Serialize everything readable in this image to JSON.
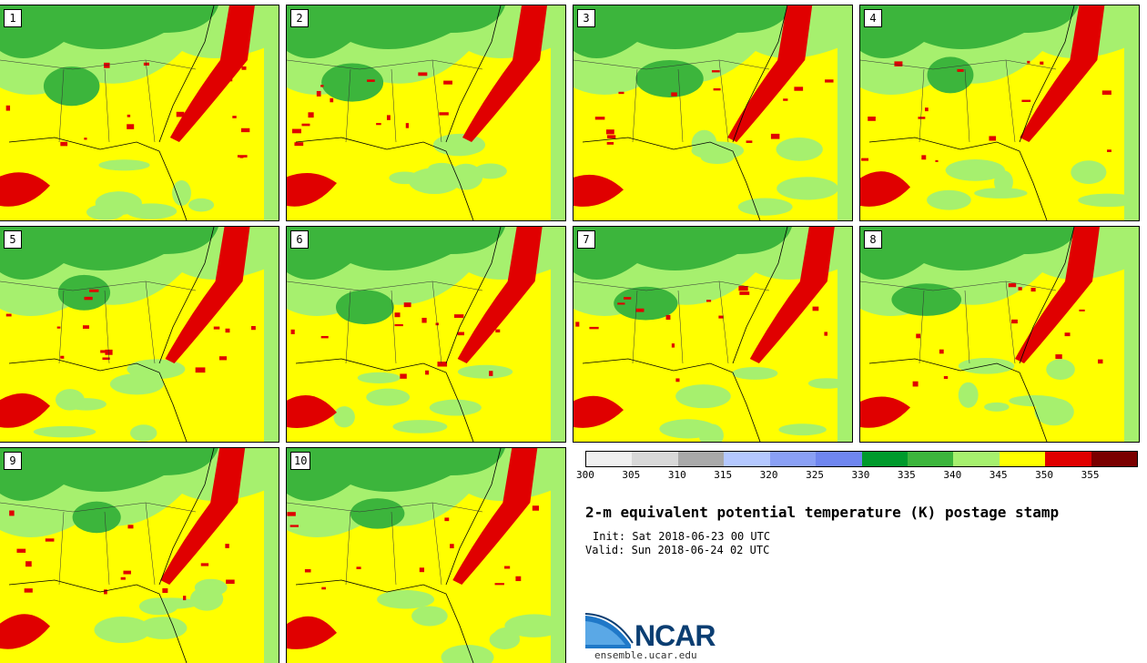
{
  "members": [
    {
      "number": "1"
    },
    {
      "number": "2"
    },
    {
      "number": "3"
    },
    {
      "number": "4"
    },
    {
      "number": "5"
    },
    {
      "number": "6"
    },
    {
      "number": "7"
    },
    {
      "number": "8"
    },
    {
      "number": "9"
    },
    {
      "number": "10"
    }
  ],
  "colorbar": {
    "colors": [
      "#f0f0f0",
      "#d8d8d8",
      "#a9a9a9",
      "#b4c8ff",
      "#8aa0f5",
      "#6f86f0",
      "#009a2c",
      "#3cb53c",
      "#a6f06e",
      "#ffff00",
      "#e00000",
      "#7a0000"
    ],
    "ticks": [
      "300",
      "305",
      "310",
      "315",
      "320",
      "325",
      "330",
      "335",
      "340",
      "345",
      "350",
      "355"
    ]
  },
  "title": "2-m equivalent potential temperature (K) postage stamp",
  "init": "Init: Sat 2018-06-23 00 UTC",
  "valid": "Valid: Sun 2018-06-24 02 UTC",
  "logo": {
    "name": "NCAR",
    "url": "ensemble.ucar.edu"
  }
}
